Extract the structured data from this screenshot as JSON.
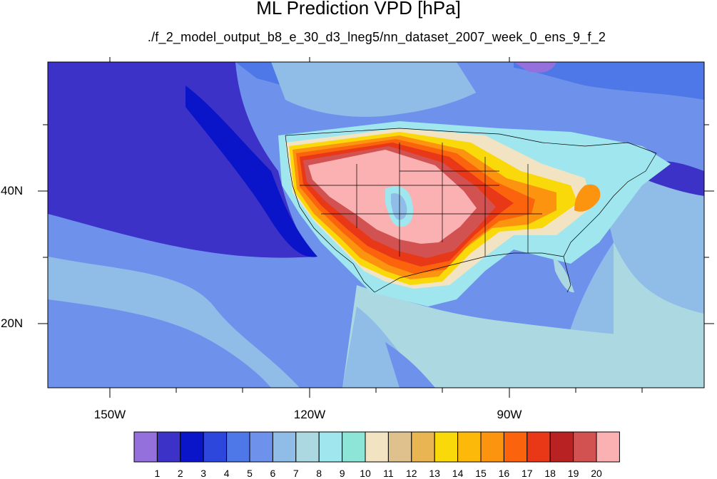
{
  "title": "ML Prediction VPD [hPa]",
  "subtitle": "./f_2_model_output_b8_e_30_d3_lneg5/nn_dataset_2007_week_0_ens_9_f_2",
  "lon_labels": [
    "150W",
    "120W",
    "90W"
  ],
  "lat_labels": [
    "40N",
    "20N"
  ],
  "colorbar": {
    "labels": [
      "1",
      "2",
      "3",
      "4",
      "5",
      "6",
      "7",
      "8",
      "9",
      "10",
      "11",
      "12",
      "13",
      "14",
      "15",
      "16",
      "17",
      "18",
      "19",
      "20"
    ],
    "colors": [
      "#9370db",
      "#3c32c8",
      "#0a14c8",
      "#2d46dc",
      "#4e78e8",
      "#6e91ec",
      "#8fbde8",
      "#acd8e2",
      "#9fe6ef",
      "#8de5d8",
      "#f2e4c3",
      "#dfc18d",
      "#e8b552",
      "#fad90a",
      "#fcb90a",
      "#fc9410",
      "#fb640c",
      "#e83818",
      "#b82222",
      "#d25252",
      "#fbb1b1"
    ]
  },
  "map_colors": {
    "ocean_far": "#3c32c8",
    "ocean_deep": "#0a14c8",
    "ocean_mid": "#4e78e8",
    "ocean_light": "#6e91ec",
    "ocean_pale": "#8fbde8",
    "lake": "#2d46dc",
    "boundary": "#000000"
  }
}
